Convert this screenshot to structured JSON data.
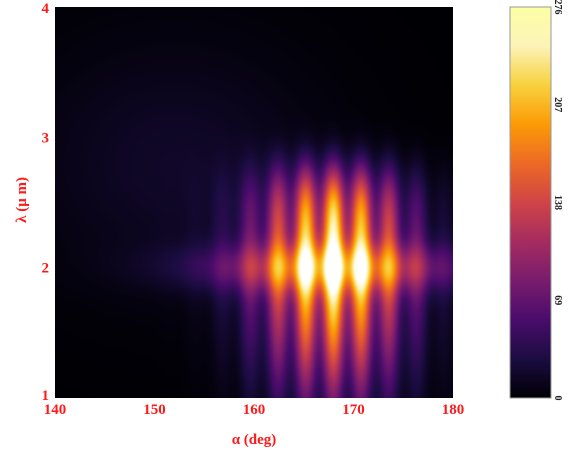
{
  "chart_data": {
    "type": "heatmap",
    "title": "",
    "xlabel": "α (deg)",
    "ylabel": "λ (μ m)",
    "xlim": [
      140,
      180
    ],
    "ylim": [
      1,
      4
    ],
    "x_ticks": [
      140,
      150,
      160,
      170,
      180
    ],
    "y_ticks": [
      1,
      2,
      3,
      4
    ],
    "colorbar": {
      "range": [
        0,
        276
      ],
      "ticks": [
        0,
        69,
        138,
        207,
        276
      ],
      "colormap": "inferno"
    },
    "peak": {
      "x": 168,
      "y": 2.0,
      "value": 276
    },
    "grid": false,
    "colors": {
      "tick_label": "#ff1a1a",
      "colorbar_label": "#222222"
    }
  }
}
